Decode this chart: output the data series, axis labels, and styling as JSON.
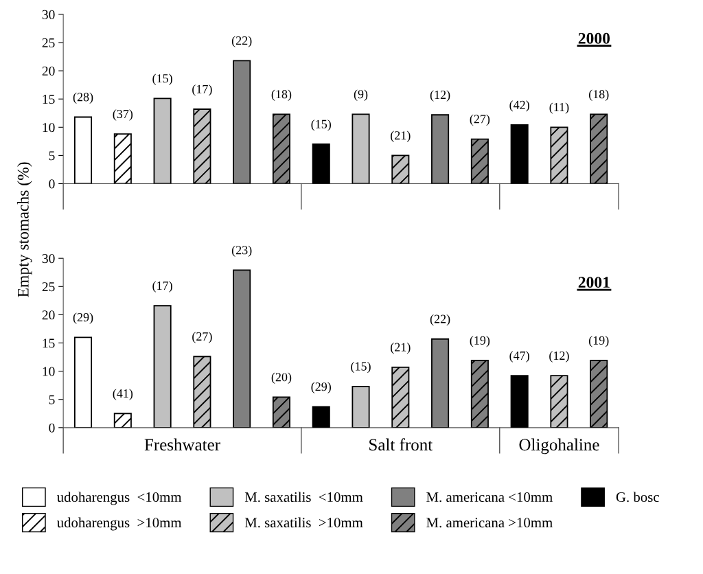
{
  "chart_data": [
    {
      "type": "bar",
      "title": "2000",
      "ylabel": "Empty stomachs (%)",
      "categories": [
        null,
        null,
        null,
        null,
        null,
        null,
        null,
        null,
        null,
        null,
        null,
        null,
        null,
        null
      ],
      "ylim": [
        0,
        30
      ],
      "yticks": [
        0,
        5,
        10,
        15,
        20,
        25,
        30
      ],
      "tick_labels": "y",
      "annotations": [
        "(28)",
        "(37)",
        "(15)",
        "(17)",
        "(22)",
        "(18)",
        "(15)",
        "(9)",
        "(21)",
        "(12)",
        "(27)",
        "(42)",
        "(11)",
        "(18)"
      ],
      "series": [
        {
          "color": "#ffffff",
          "values": [
            11.8,
            null,
            null,
            null,
            null,
            null,
            null,
            null,
            null,
            null,
            null,
            null,
            null,
            null
          ]
        },
        {
          "color": "#ffffff",
          "values": [
            null,
            8.8,
            null,
            null,
            null,
            null,
            null,
            null,
            null,
            null,
            null,
            null,
            null,
            null
          ]
        },
        {
          "color": "#c0c0c0",
          "values": [
            null,
            null,
            15.1,
            null,
            null,
            null,
            null,
            12.3,
            null,
            null,
            null,
            null,
            null,
            null
          ]
        },
        {
          "color": "#c0c0c0",
          "values": [
            null,
            null,
            null,
            13.2,
            null,
            null,
            null,
            null,
            5.0,
            null,
            null,
            null,
            10.0,
            null
          ]
        },
        {
          "color": "#808080",
          "values": [
            null,
            null,
            null,
            null,
            21.8,
            null,
            null,
            null,
            null,
            12.2,
            null,
            null,
            null,
            null
          ]
        },
        {
          "color": "#808080",
          "values": [
            null,
            null,
            null,
            null,
            null,
            12.3,
            null,
            null,
            null,
            null,
            7.9,
            null,
            null,
            12.3
          ]
        },
        {
          "color": "#000000",
          "values": [
            null,
            null,
            null,
            null,
            null,
            null,
            7.0,
            null,
            null,
            null,
            null,
            10.4,
            null,
            null
          ]
        }
      ]
    },
    {
      "type": "bar",
      "title": "2001",
      "categories": [
        null,
        null,
        null,
        null,
        null,
        null,
        null,
        null,
        null,
        null,
        null,
        null,
        null,
        null
      ],
      "ylim": [
        0,
        30
      ],
      "yticks": [
        0,
        5,
        10,
        15,
        20,
        25,
        30
      ],
      "tick_labels": "y",
      "legend": "bottom",
      "annotations": [
        "(29)",
        "(41)",
        "(17)",
        "(27)",
        "(23)",
        "(20)",
        "(29)",
        "(15)",
        "(21)",
        "(22)",
        "(19)",
        "(47)",
        "(12)",
        "(19)",
        "Freshwater",
        "Salt front",
        "Oligohaline"
      ],
      "series": [
        {
          "name": "udoharengus  <10mm",
          "color": "#ffffff",
          "values": [
            16.0,
            null,
            null,
            null,
            null,
            null,
            null,
            null,
            null,
            null,
            null,
            null,
            null,
            null
          ]
        },
        {
          "name": "udoharengus  >10mm",
          "color": "#ffffff",
          "values": [
            null,
            2.5,
            null,
            null,
            null,
            null,
            null,
            null,
            null,
            null,
            null,
            null,
            null,
            null
          ]
        },
        {
          "name": "M. saxatilis  <10mm",
          "color": "#c0c0c0",
          "values": [
            null,
            null,
            21.6,
            null,
            null,
            null,
            null,
            7.3,
            null,
            null,
            null,
            null,
            null,
            null
          ]
        },
        {
          "name": "M. saxatilis  >10mm",
          "color": "#c0c0c0",
          "values": [
            null,
            null,
            null,
            12.6,
            null,
            null,
            null,
            null,
            10.7,
            null,
            null,
            null,
            9.2,
            null
          ]
        },
        {
          "name": "M. americana <10mm",
          "color": "#808080",
          "values": [
            null,
            null,
            null,
            null,
            27.9,
            null,
            null,
            null,
            null,
            15.7,
            null,
            null,
            null,
            null
          ]
        },
        {
          "name": "M. americana >10mm",
          "color": "#808080",
          "values": [
            null,
            null,
            null,
            null,
            null,
            5.4,
            null,
            null,
            null,
            null,
            11.9,
            null,
            null,
            11.9
          ]
        },
        {
          "name": "G. bosc",
          "color": "#000000",
          "values": [
            null,
            null,
            null,
            null,
            null,
            null,
            3.7,
            null,
            null,
            null,
            null,
            9.2,
            null,
            null
          ]
        }
      ]
    }
  ]
}
